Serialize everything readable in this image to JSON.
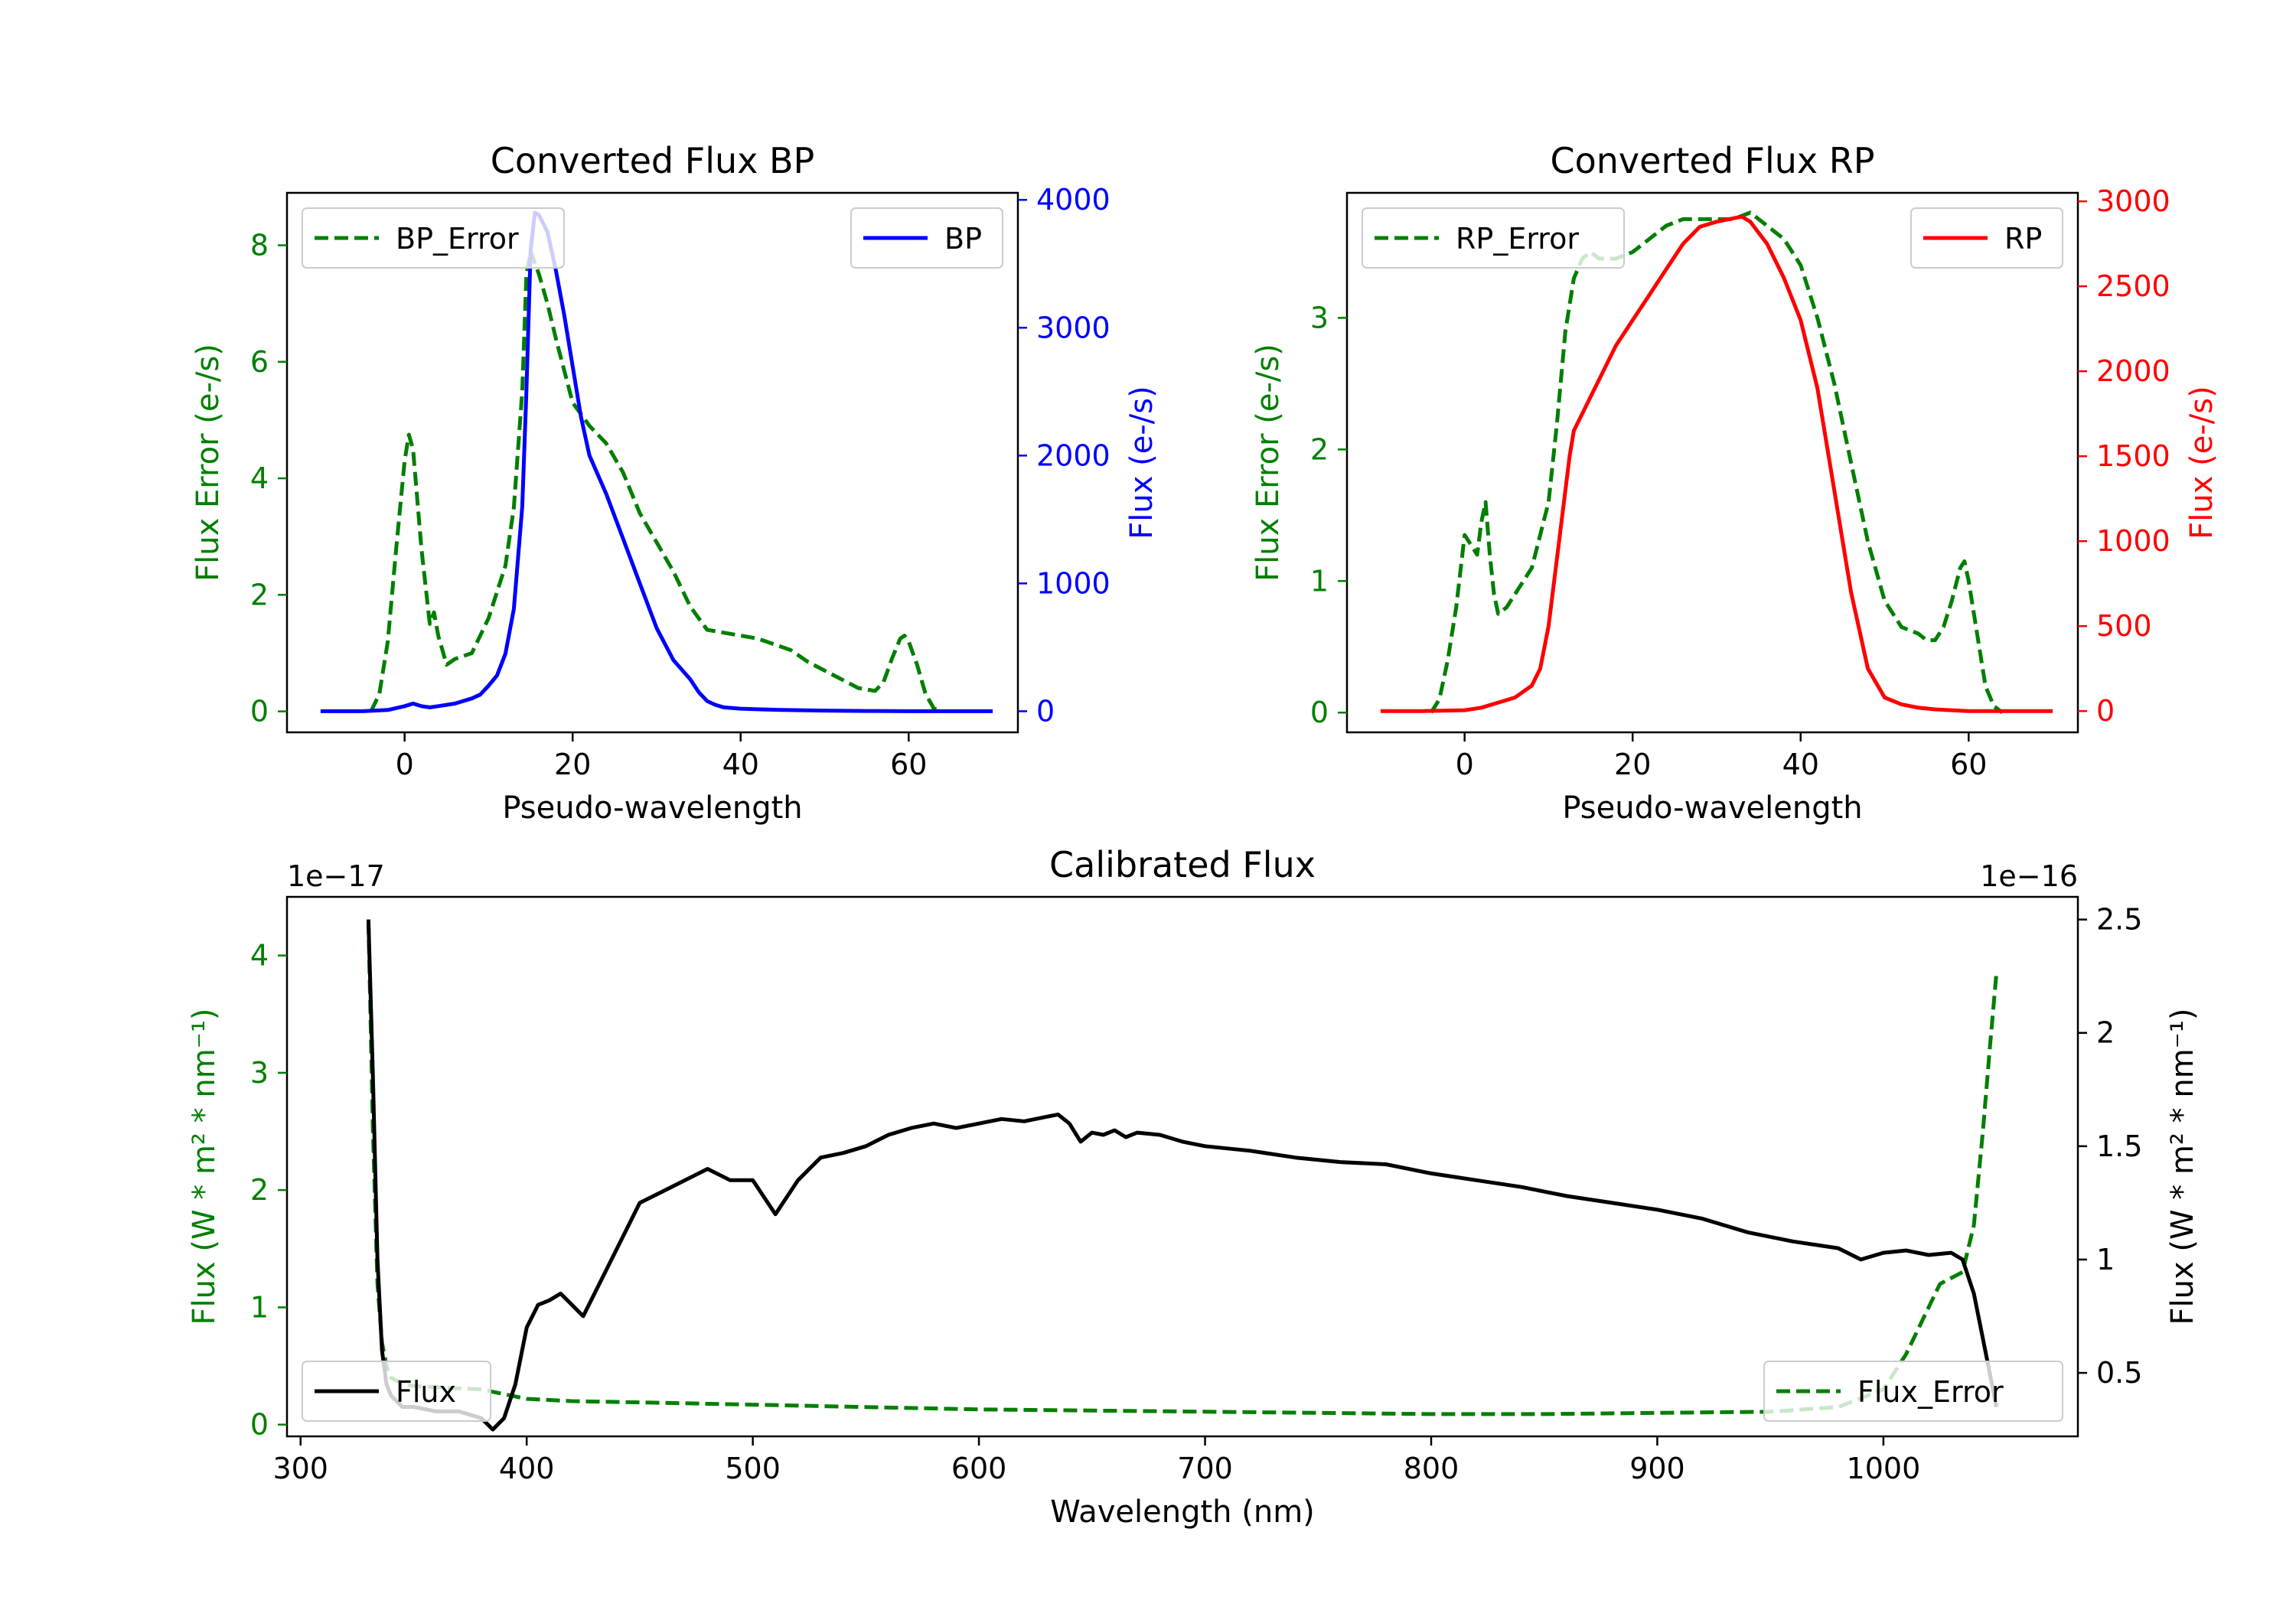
{
  "colors": {
    "bp": "#0000ff",
    "rp": "#ff0000",
    "error": "#007f00",
    "flux": "#000000",
    "axis": "#000000"
  },
  "chart_data": [
    {
      "id": "bp",
      "type": "line",
      "title": "Converted Flux BP",
      "xlabel": "Pseudo-wavelength",
      "ylabel_left": "Flux Error (e-/s)",
      "ylabel_right": "Flux (e-/s)",
      "xlim": [
        -14,
        73
      ],
      "ylim_left": [
        -0.36,
        8.9
      ],
      "ylim_right": [
        -165,
        4055
      ],
      "xticks": [
        0,
        20,
        40,
        60
      ],
      "yticks_left": [
        0,
        2,
        4,
        6,
        8
      ],
      "yticks_right": [
        0,
        1000,
        2000,
        3000,
        4000
      ],
      "legend_left": {
        "label": "BP_Error",
        "position": "upper left"
      },
      "legend_right": {
        "label": "BP",
        "position": "upper right"
      },
      "series": [
        {
          "name": "BP_Error",
          "axis": "left",
          "style": "dashed",
          "color": "error",
          "x": [
            -4,
            -3,
            -2,
            -1,
            0,
            0.5,
            1,
            2,
            3,
            3.5,
            4,
            5,
            6,
            8,
            10,
            12,
            13,
            14,
            14.5,
            15,
            16,
            17,
            18,
            20,
            22,
            24,
            26,
            28,
            30,
            32,
            34,
            36,
            38,
            40,
            42,
            44,
            46,
            48,
            50,
            52,
            54,
            56,
            57,
            58,
            59,
            59.5,
            60,
            61,
            62,
            63,
            64
          ],
          "y": [
            0.0,
            0.3,
            1.2,
            2.8,
            4.3,
            4.75,
            4.5,
            2.8,
            1.5,
            1.7,
            1.3,
            0.8,
            0.9,
            1.0,
            1.6,
            2.5,
            3.5,
            5.5,
            7.5,
            7.9,
            7.5,
            7.0,
            6.4,
            5.3,
            4.9,
            4.6,
            4.1,
            3.4,
            2.9,
            2.4,
            1.8,
            1.4,
            1.35,
            1.3,
            1.25,
            1.15,
            1.05,
            0.85,
            0.7,
            0.55,
            0.4,
            0.35,
            0.5,
            0.9,
            1.25,
            1.3,
            1.2,
            0.8,
            0.3,
            0.05,
            0.0
          ]
        },
        {
          "name": "BP",
          "axis": "right",
          "style": "solid",
          "color": "bp",
          "x": [
            -10,
            -5,
            -2,
            0,
            1,
            2,
            3,
            4,
            6,
            8,
            9,
            10,
            11,
            12,
            13,
            14,
            14.5,
            15,
            15.5,
            16,
            17,
            18,
            19,
            20,
            21,
            22,
            24,
            26,
            28,
            30,
            32,
            34,
            35,
            36,
            37,
            38,
            40,
            42,
            45,
            50,
            55,
            60,
            65,
            70
          ],
          "y": [
            0,
            0,
            10,
            40,
            60,
            40,
            30,
            40,
            60,
            100,
            130,
            200,
            280,
            450,
            800,
            1600,
            2500,
            3600,
            3900,
            3880,
            3750,
            3450,
            3100,
            2700,
            2300,
            2000,
            1700,
            1350,
            1000,
            650,
            400,
            250,
            150,
            80,
            50,
            30,
            20,
            15,
            10,
            5,
            2,
            0,
            0,
            0
          ]
        }
      ]
    },
    {
      "id": "rp",
      "type": "line",
      "title": "Converted Flux RP",
      "xlabel": "Pseudo-wavelength",
      "ylabel_left": "Flux Error (e-/s)",
      "ylabel_right": "Flux (e-/s)",
      "xlim": [
        -14,
        73
      ],
      "ylim_left": [
        -0.15,
        3.95
      ],
      "ylim_right": [
        -125,
        3050
      ],
      "xticks": [
        0,
        20,
        40,
        60
      ],
      "yticks_left": [
        0,
        1,
        2,
        3
      ],
      "yticks_right": [
        0,
        500,
        1000,
        1500,
        2000,
        2500,
        3000
      ],
      "legend_left": {
        "label": "RP_Error",
        "position": "upper left"
      },
      "legend_right": {
        "label": "RP",
        "position": "upper right"
      },
      "series": [
        {
          "name": "RP_Error",
          "axis": "left",
          "style": "dashed",
          "color": "error",
          "x": [
            -4,
            -3,
            -2,
            -1,
            0,
            0.5,
            1,
            1.5,
            2,
            2.5,
            3,
            3.5,
            4,
            5,
            6,
            8,
            10,
            11,
            12,
            13,
            14,
            15,
            16,
            18,
            20,
            22,
            24,
            26,
            28,
            30,
            32,
            34,
            35,
            36,
            38,
            40,
            42,
            44,
            46,
            48,
            50,
            52,
            54,
            55,
            56,
            57,
            58,
            59,
            59.5,
            60,
            61,
            62,
            63,
            64
          ],
          "y": [
            0.0,
            0.1,
            0.4,
            0.8,
            1.35,
            1.3,
            1.25,
            1.2,
            1.45,
            1.6,
            1.2,
            0.9,
            0.75,
            0.8,
            0.9,
            1.1,
            1.6,
            2.2,
            2.9,
            3.3,
            3.45,
            3.5,
            3.45,
            3.45,
            3.5,
            3.6,
            3.7,
            3.75,
            3.75,
            3.75,
            3.75,
            3.8,
            3.75,
            3.7,
            3.6,
            3.4,
            3.0,
            2.5,
            1.9,
            1.3,
            0.85,
            0.65,
            0.6,
            0.55,
            0.55,
            0.65,
            0.85,
            1.1,
            1.15,
            1.0,
            0.6,
            0.2,
            0.05,
            0.0
          ]
        },
        {
          "name": "RP",
          "axis": "right",
          "style": "solid",
          "color": "rp",
          "x": [
            -10,
            -5,
            0,
            2,
            4,
            6,
            8,
            9,
            10,
            11,
            12,
            12.5,
            13,
            14,
            16,
            18,
            20,
            22,
            24,
            26,
            28,
            30,
            32,
            33,
            34,
            36,
            38,
            40,
            42,
            44,
            46,
            48,
            50,
            52,
            54,
            56,
            60,
            65,
            70
          ],
          "y": [
            0,
            0,
            5,
            20,
            50,
            80,
            150,
            250,
            500,
            900,
            1300,
            1500,
            1650,
            1750,
            1950,
            2150,
            2300,
            2450,
            2600,
            2750,
            2850,
            2880,
            2900,
            2910,
            2880,
            2750,
            2550,
            2300,
            1900,
            1300,
            700,
            250,
            80,
            40,
            20,
            10,
            0,
            0,
            0
          ]
        }
      ]
    },
    {
      "id": "cal",
      "type": "line",
      "title": "Calibrated Flux",
      "xlabel": "Wavelength (nm)",
      "ylabel_left": "Flux (W * m² * nm⁻¹)",
      "ylabel_right": "Flux (W * m² * nm⁻¹)",
      "offset_left": "1e−17",
      "offset_right": "1e−16",
      "xlim": [
        294,
        1086
      ],
      "ylim_left": [
        -0.1,
        4.5
      ],
      "ylim_right": [
        0.22,
        2.6
      ],
      "xticks": [
        300,
        400,
        500,
        600,
        700,
        800,
        900,
        1000
      ],
      "yticks_left": [
        0,
        1,
        2,
        3,
        4
      ],
      "yticks_right": [
        0.5,
        1.0,
        1.5,
        2.0,
        2.5
      ],
      "legend_left": {
        "label": "Flux",
        "position": "lower left"
      },
      "legend_right": {
        "label": "Flux_Error",
        "position": "lower right"
      },
      "series": [
        {
          "name": "Flux_Error",
          "axis": "left",
          "style": "dashed",
          "color": "error",
          "x": [
            330,
            332,
            334,
            336,
            338,
            340,
            345,
            350,
            360,
            370,
            380,
            390,
            400,
            420,
            450,
            500,
            550,
            600,
            650,
            700,
            750,
            800,
            850,
            900,
            950,
            980,
            1000,
            1010,
            1020,
            1025,
            1030,
            1035,
            1040,
            1044,
            1047,
            1050
          ],
          "y": [
            4.3,
            2.5,
            1.2,
            0.7,
            0.5,
            0.4,
            0.35,
            0.33,
            0.32,
            0.31,
            0.3,
            0.26,
            0.22,
            0.2,
            0.19,
            0.17,
            0.15,
            0.13,
            0.12,
            0.11,
            0.1,
            0.09,
            0.09,
            0.1,
            0.11,
            0.15,
            0.3,
            0.6,
            1.0,
            1.2,
            1.25,
            1.3,
            1.7,
            2.5,
            3.2,
            3.85
          ]
        },
        {
          "name": "Flux",
          "axis": "right",
          "style": "solid",
          "color": "flux",
          "x": [
            330,
            332,
            334,
            336,
            338,
            340,
            345,
            350,
            360,
            370,
            380,
            385,
            390,
            395,
            400,
            405,
            410,
            415,
            420,
            425,
            430,
            440,
            450,
            460,
            470,
            480,
            490,
            500,
            510,
            520,
            530,
            540,
            550,
            560,
            570,
            580,
            590,
            600,
            610,
            620,
            630,
            635,
            640,
            645,
            650,
            655,
            660,
            665,
            670,
            680,
            690,
            700,
            720,
            740,
            760,
            780,
            800,
            820,
            840,
            860,
            880,
            900,
            920,
            940,
            960,
            980,
            990,
            1000,
            1010,
            1020,
            1030,
            1035,
            1040,
            1045,
            1050
          ],
          "y": [
            2.5,
            1.8,
            1.0,
            0.6,
            0.45,
            0.4,
            0.35,
            0.35,
            0.33,
            0.33,
            0.3,
            0.25,
            0.3,
            0.45,
            0.7,
            0.8,
            0.82,
            0.85,
            0.8,
            0.75,
            0.85,
            1.05,
            1.25,
            1.3,
            1.35,
            1.4,
            1.35,
            1.35,
            1.2,
            1.35,
            1.45,
            1.47,
            1.5,
            1.55,
            1.58,
            1.6,
            1.58,
            1.6,
            1.62,
            1.61,
            1.63,
            1.64,
            1.6,
            1.52,
            1.56,
            1.55,
            1.57,
            1.54,
            1.56,
            1.55,
            1.52,
            1.5,
            1.48,
            1.45,
            1.43,
            1.42,
            1.38,
            1.35,
            1.32,
            1.28,
            1.25,
            1.22,
            1.18,
            1.12,
            1.08,
            1.05,
            1.0,
            1.03,
            1.04,
            1.02,
            1.03,
            1.0,
            0.85,
            0.6,
            0.35
          ]
        }
      ]
    }
  ]
}
